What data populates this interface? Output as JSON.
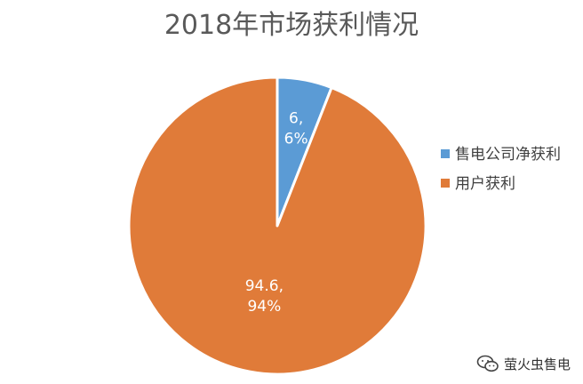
{
  "chart_data": {
    "type": "pie",
    "title": "2018年市场获利情况",
    "slices": [
      {
        "name": "售电公司净获利",
        "value": 6,
        "percent_label": "6%",
        "color": "#5b9bd5"
      },
      {
        "name": "用户获利",
        "value": 94.6,
        "percent_label": "94%",
        "color": "#e07b39"
      }
    ],
    "legend_position": "right",
    "start_angle_deg": 0,
    "direction": "clockwise"
  },
  "watermark": {
    "text": "萤火虫售电",
    "icon": "wechat-logo-icon"
  }
}
